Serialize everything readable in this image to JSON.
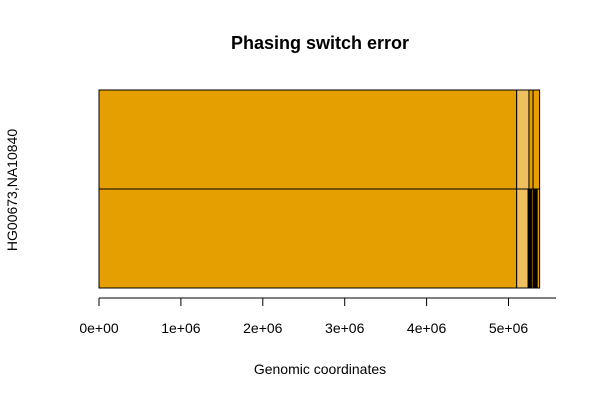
{
  "chart_data": {
    "type": "bar",
    "title": "Phasing switch error",
    "xlabel": "Genomic coordinates",
    "ylabel": "HG00673,NA10840",
    "xlim": [
      0,
      5400000
    ],
    "x_ticks": [
      0,
      1000000,
      2000000,
      3000000,
      4000000,
      5000000
    ],
    "x_tick_labels": [
      "0e+00",
      "1e+06",
      "2e+06",
      "3e+06",
      "4e+06",
      "5e+06"
    ],
    "colors": {
      "phase_a": "#E69F00",
      "phase_b": "#F0C060",
      "switch": "#000000",
      "border": "#000000"
    },
    "tracks": [
      {
        "segments": [
          {
            "start": 0,
            "end": 5100000,
            "state": "phase_a"
          },
          {
            "start": 5100000,
            "end": 5250000,
            "state": "phase_b"
          },
          {
            "start": 5250000,
            "end": 5300000,
            "state": "phase_a"
          },
          {
            "start": 5300000,
            "end": 5380000,
            "state": "phase_a"
          }
        ]
      },
      {
        "segments": [
          {
            "start": 0,
            "end": 5100000,
            "state": "phase_a"
          },
          {
            "start": 5100000,
            "end": 5240000,
            "state": "phase_b"
          },
          {
            "start": 5240000,
            "end": 5280000,
            "state": "switch"
          },
          {
            "start": 5280000,
            "end": 5300000,
            "state": "phase_a"
          },
          {
            "start": 5300000,
            "end": 5350000,
            "state": "switch"
          },
          {
            "start": 5350000,
            "end": 5380000,
            "state": "phase_a"
          }
        ]
      }
    ]
  }
}
